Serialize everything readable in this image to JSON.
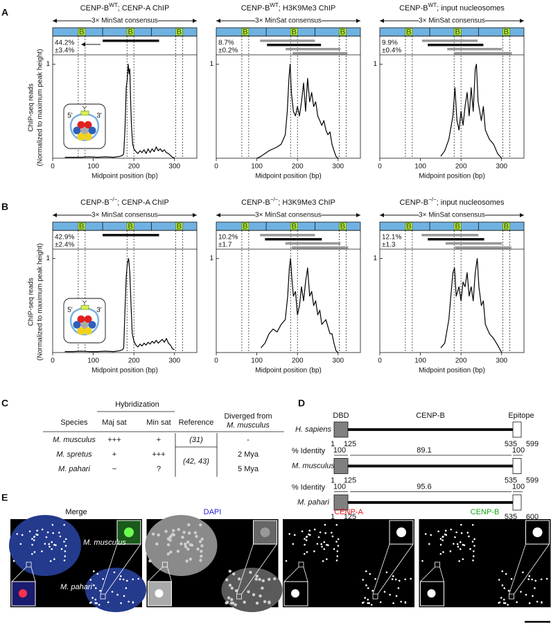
{
  "chart_data": [
    {
      "type": "line",
      "panel": "A",
      "title": {
        "name": "CENP-B",
        "genotype": "WT",
        "target": "; CENP-A ChIP"
      },
      "ylabel": [
        "ChIP-seq reads",
        "(Normalized to maximum peak height)"
      ],
      "xlabel": "Midpoint position (bp)",
      "consensus_label": "3× MinSat consensus",
      "b_label": "B",
      "b_sites": [
        [
          63,
          80
        ],
        [
          183,
          200
        ],
        [
          303,
          320
        ]
      ],
      "consensus_dividers": [
        123,
        243
      ],
      "enrichment": "44.2%",
      "error": "±3.4%",
      "arrow": true,
      "nucleosomes": [
        {
          "start": 123,
          "end": 262,
          "color": "#111111"
        }
      ],
      "inset": {
        "five_prime": "5'",
        "three_prime": "3'"
      },
      "xlim": [
        0,
        355
      ],
      "xticks": [
        0,
        100,
        200,
        300
      ],
      "ylim": [
        0,
        1.1
      ],
      "yticks": [
        1
      ],
      "color": "#000000",
      "x": [
        30,
        50,
        70,
        90,
        110,
        130,
        150,
        165,
        172,
        175,
        178,
        181,
        184,
        186,
        188,
        190,
        192,
        194,
        197,
        200,
        205,
        210,
        215,
        220,
        225,
        230,
        235,
        240,
        245,
        250,
        255,
        260,
        265,
        270,
        275,
        280,
        285,
        290,
        295,
        300
      ],
      "values": [
        0.01,
        0.01,
        0.01,
        0.015,
        0.01,
        0.015,
        0.01,
        0.02,
        0.03,
        0.05,
        0.3,
        0.75,
        0.85,
        1.0,
        0.9,
        0.95,
        0.6,
        0.35,
        0.15,
        0.1,
        0.07,
        0.05,
        0.08,
        0.06,
        0.09,
        0.05,
        0.1,
        0.06,
        0.1,
        0.07,
        0.12,
        0.08,
        0.1,
        0.07,
        0.09,
        0.06,
        0.05,
        0.03,
        0.01,
        0.005
      ]
    },
    {
      "type": "line",
      "title": {
        "name": "CENP-B",
        "genotype": "WT",
        "target": "; H3K9Me3 ChIP"
      },
      "xlabel": "Midpoint position (bp)",
      "consensus_label": "3× MinSat consensus",
      "b_label": "B",
      "b_sites": [
        [
          63,
          80
        ],
        [
          183,
          200
        ],
        [
          303,
          320
        ]
      ],
      "consensus_dividers": [
        123,
        243
      ],
      "enrichment": "8.7%",
      "error": "±0.2%",
      "nucleosomes": [
        {
          "start": 108,
          "end": 243,
          "color": "#999999"
        },
        {
          "start": 125,
          "end": 258,
          "color": "#111111"
        },
        {
          "start": 171,
          "end": 306,
          "color": "#999999"
        },
        {
          "start": 188,
          "end": 323,
          "color": "#999999"
        }
      ],
      "xlim": [
        0,
        355
      ],
      "xticks": [
        0,
        100,
        200,
        300
      ],
      "ylim": [
        0,
        1.1
      ],
      "yticks": [
        1
      ],
      "color": "#000000",
      "x": [
        100,
        110,
        120,
        130,
        140,
        150,
        160,
        170,
        175,
        179,
        182,
        185,
        190,
        195,
        200,
        205,
        210,
        215,
        220,
        225,
        230,
        235,
        240,
        245,
        250,
        255,
        260,
        265,
        270,
        275,
        280,
        285,
        290,
        295,
        300
      ],
      "values": [
        0,
        0.02,
        0.05,
        0.08,
        0.1,
        0.12,
        0.15,
        0.25,
        0.5,
        0.85,
        1.0,
        0.7,
        0.5,
        0.45,
        0.55,
        0.45,
        0.6,
        0.8,
        0.5,
        0.85,
        0.6,
        0.7,
        0.55,
        0.6,
        0.45,
        0.4,
        0.35,
        0.4,
        0.3,
        0.25,
        0.28,
        0.15,
        0.08,
        0.02,
        0
      ]
    },
    {
      "type": "line",
      "title": {
        "name": "CENP-B",
        "genotype": "WT",
        "target": "; input nucleosomes"
      },
      "xlabel": "Midpoint position (bp)",
      "consensus_label": "3× MinSat consensus",
      "b_label": "B",
      "b_sites": [
        [
          63,
          80
        ],
        [
          183,
          200
        ],
        [
          303,
          320
        ]
      ],
      "consensus_dividers": [
        123,
        243
      ],
      "enrichment": "9.9%",
      "error": "±0.4%",
      "nucleosomes": [
        {
          "start": 104,
          "end": 241,
          "color": "#999999"
        },
        {
          "start": 118,
          "end": 255,
          "color": "#111111"
        },
        {
          "start": 166,
          "end": 301,
          "color": "#999999"
        },
        {
          "start": 183,
          "end": 325,
          "color": "#999999"
        }
      ],
      "xlim": [
        0,
        355
      ],
      "xticks": [
        0,
        100,
        200,
        300
      ],
      "ylim": [
        0,
        1.1
      ],
      "yticks": [
        1
      ],
      "color": "#000000",
      "x": [
        150,
        160,
        170,
        180,
        185,
        190,
        195,
        200,
        205,
        210,
        215,
        220,
        225,
        230,
        235,
        238,
        242,
        250,
        255,
        260,
        270,
        280,
        290,
        300
      ],
      "values": [
        0.02,
        0.08,
        0.2,
        0.45,
        0.75,
        0.4,
        0.3,
        0.5,
        0.35,
        0.55,
        0.7,
        0.45,
        0.75,
        0.5,
        0.95,
        1.0,
        0.6,
        0.4,
        0.55,
        0.3,
        0.2,
        0.15,
        0.05,
        0
      ]
    },
    {
      "type": "line",
      "panel": "B",
      "title": {
        "name": "CENP-B",
        "genotype": "−/−",
        "target": "; CENP-A ChIP"
      },
      "ylabel": [
        "ChIP-seq reads",
        "(Normalized to maximum peak height)"
      ],
      "xlabel": "Midpoint position (bp)",
      "consensus_label": "3× MinSat consensus",
      "b_label": "B",
      "b_sites": [
        [
          63,
          80
        ],
        [
          183,
          200
        ],
        [
          303,
          320
        ]
      ],
      "consensus_dividers": [
        123,
        243
      ],
      "enrichment": "42.9%",
      "error": "±2.4%",
      "nucleosomes": [
        {
          "start": 123,
          "end": 262,
          "color": "#111111"
        }
      ],
      "inset": {
        "five_prime": "5'",
        "three_prime": "3'"
      },
      "xlim": [
        0,
        355
      ],
      "xticks": [
        0,
        100,
        200,
        300
      ],
      "ylim": [
        0,
        1.1
      ],
      "yticks": [
        1
      ],
      "color": "#000000",
      "x": [
        30,
        50,
        70,
        90,
        110,
        130,
        150,
        165,
        172,
        175,
        178,
        181,
        184,
        187,
        190,
        193,
        196,
        200,
        205,
        210,
        215,
        220,
        225,
        230,
        235,
        240,
        245,
        250,
        255,
        260,
        265,
        270,
        275,
        280,
        285,
        290,
        295,
        300
      ],
      "values": [
        0.01,
        0.01,
        0.015,
        0.01,
        0.01,
        0.015,
        0.01,
        0.02,
        0.03,
        0.05,
        0.45,
        0.8,
        0.95,
        1.0,
        0.85,
        0.5,
        0.2,
        0.12,
        0.08,
        0.06,
        0.09,
        0.07,
        0.1,
        0.08,
        0.11,
        0.09,
        0.12,
        0.1,
        0.13,
        0.1,
        0.12,
        0.14,
        0.11,
        0.15,
        0.1,
        0.08,
        0.04,
        0.03
      ]
    },
    {
      "type": "line",
      "title": {
        "name": "CENP-B",
        "genotype": "−/−",
        "target": "; H3K9Me3 ChIP"
      },
      "xlabel": "Midpoint position (bp)",
      "consensus_label": "3× MinSat consensus",
      "b_label": "B",
      "b_sites": [
        [
          63,
          80
        ],
        [
          183,
          200
        ],
        [
          303,
          320
        ]
      ],
      "consensus_dividers": [
        123,
        243
      ],
      "enrichment": "10.2%",
      "error": "±1.7",
      "nucleosomes": [
        {
          "start": 108,
          "end": 243,
          "color": "#999999"
        },
        {
          "start": 120,
          "end": 260,
          "color": "#111111"
        },
        {
          "start": 170,
          "end": 306,
          "color": "#999999"
        },
        {
          "start": 186,
          "end": 325,
          "color": "#999999"
        }
      ],
      "xlim": [
        0,
        355
      ],
      "xticks": [
        0,
        100,
        200,
        300
      ],
      "ylim": [
        0,
        1.1
      ],
      "yticks": [
        1
      ],
      "color": "#000000",
      "x": [
        110,
        120,
        130,
        140,
        150,
        160,
        170,
        176,
        180,
        183,
        186,
        190,
        195,
        200,
        205,
        210,
        215,
        220,
        225,
        230,
        235,
        240,
        245,
        250,
        255,
        260,
        270,
        280,
        285,
        290,
        295,
        300
      ],
      "values": [
        0.05,
        0.1,
        0.2,
        0.25,
        0.22,
        0.3,
        0.35,
        0.6,
        0.9,
        1.0,
        0.8,
        0.6,
        0.65,
        0.4,
        0.5,
        0.7,
        0.55,
        0.75,
        0.9,
        0.6,
        0.65,
        0.5,
        0.55,
        0.4,
        0.45,
        0.3,
        0.35,
        0.2,
        0.2,
        0.1,
        0.02,
        0
      ]
    },
    {
      "type": "line",
      "title": {
        "name": "CENP-B",
        "genotype": "−/−",
        "target": "; input nucleosomes"
      },
      "xlabel": "Midpoint position (bp)",
      "consensus_label": "3× MinSat consensus",
      "b_label": "B",
      "b_sites": [
        [
          63,
          80
        ],
        [
          183,
          200
        ],
        [
          303,
          320
        ]
      ],
      "consensus_dividers": [
        123,
        243
      ],
      "enrichment": "12.1%",
      "error": "±1.3",
      "nucleosomes": [
        {
          "start": 103,
          "end": 243,
          "color": "#999999"
        },
        {
          "start": 118,
          "end": 257,
          "color": "#111111"
        },
        {
          "start": 162,
          "end": 301,
          "color": "#999999"
        },
        {
          "start": 185,
          "end": 324,
          "color": "#999999"
        }
      ],
      "xlim": [
        0,
        355
      ],
      "xticks": [
        0,
        100,
        200,
        300
      ],
      "ylim": [
        0,
        1.1
      ],
      "yticks": [
        1
      ],
      "color": "#000000",
      "x": [
        150,
        160,
        170,
        175,
        180,
        184,
        188,
        195,
        200,
        205,
        210,
        215,
        220,
        225,
        230,
        235,
        240,
        244,
        250,
        255,
        260,
        270,
        280,
        290,
        300
      ],
      "values": [
        0.05,
        0.1,
        0.35,
        0.6,
        0.85,
        0.9,
        0.6,
        0.7,
        0.55,
        0.75,
        0.7,
        0.85,
        0.6,
        0.7,
        0.55,
        0.85,
        1.0,
        0.7,
        0.5,
        0.55,
        0.3,
        0.2,
        0.15,
        0.08,
        0
      ]
    }
  ],
  "table": {
    "label": "C",
    "group_header": "Hybridization",
    "headers": {
      "species": "Species",
      "maj": "Maj sat",
      "min": "Min sat",
      "reference": "Reference",
      "diverged": [
        "Diverged from",
        "M. musculus"
      ]
    },
    "rows": [
      [
        "M. musculus",
        "+++",
        "+",
        "-"
      ],
      [
        "M. spretus",
        "+",
        "+++",
        "2 Mya"
      ],
      [
        "M. pahari",
        "−",
        "?",
        "5 Mya"
      ]
    ],
    "references": [
      "(31)",
      "(42, 43)"
    ]
  },
  "diagram": {
    "label": "D",
    "domains": [
      "DBD",
      "CENP-B",
      "Epitope"
    ],
    "rows": [
      {
        "species": "H. sapiens",
        "positions": [
          1,
          125,
          535,
          599
        ]
      },
      {
        "species": "M. musculus",
        "positions": [
          1,
          125,
          535,
          599
        ]
      },
      {
        "species": "M. pahari",
        "positions": [
          1,
          125,
          535,
          600
        ]
      }
    ],
    "identity_label": "% Identity",
    "identities": [
      [
        100,
        89.1,
        100
      ],
      [
        100,
        95.6,
        100
      ]
    ]
  },
  "micrographs": {
    "label": "E",
    "channels": [
      {
        "name": "Merge",
        "color": "#000000"
      },
      {
        "name": "DAPI",
        "color": "#1f1fd6"
      },
      {
        "name": "CENP-A",
        "color": "#e3141b"
      },
      {
        "name": "CENP-B",
        "color": "#13a313"
      }
    ],
    "species": [
      "M. musculus",
      "M. pahari"
    ]
  }
}
